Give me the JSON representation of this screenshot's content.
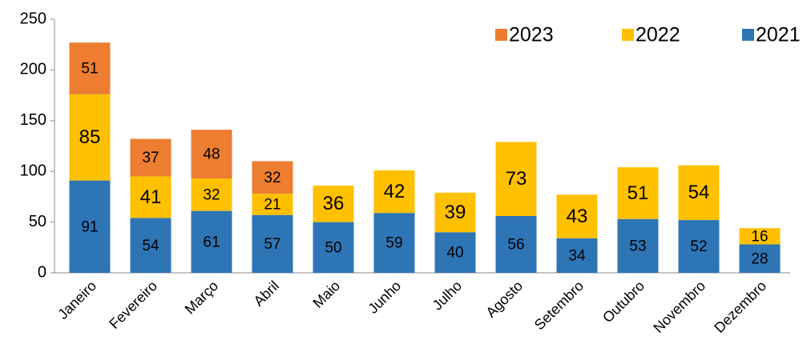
{
  "chart_data": {
    "type": "stacked_bar",
    "categories": [
      "Janeiro",
      "Fevereiro",
      "Março",
      "Abril",
      "Maio",
      "Junho",
      "Julho",
      "Agosto",
      "Setembro",
      "Outubro",
      "Novembro",
      "Dezembro"
    ],
    "series": [
      {
        "name": "2021",
        "color": "#2e75b6",
        "values": [
          91,
          54,
          61,
          57,
          50,
          59,
          40,
          56,
          34,
          53,
          52,
          28
        ]
      },
      {
        "name": "2022",
        "color": "#ffc000",
        "values": [
          85,
          41,
          32,
          21,
          36,
          42,
          39,
          73,
          43,
          51,
          54,
          16
        ]
      },
      {
        "name": "2023",
        "color": "#ed7d31",
        "values": [
          51,
          37,
          48,
          32,
          null,
          null,
          null,
          null,
          null,
          null,
          null,
          null
        ]
      }
    ],
    "ylim": [
      0,
      250
    ],
    "yticks": [
      0,
      50,
      100,
      150,
      200,
      250
    ],
    "grid": false,
    "legend": "top-right"
  }
}
